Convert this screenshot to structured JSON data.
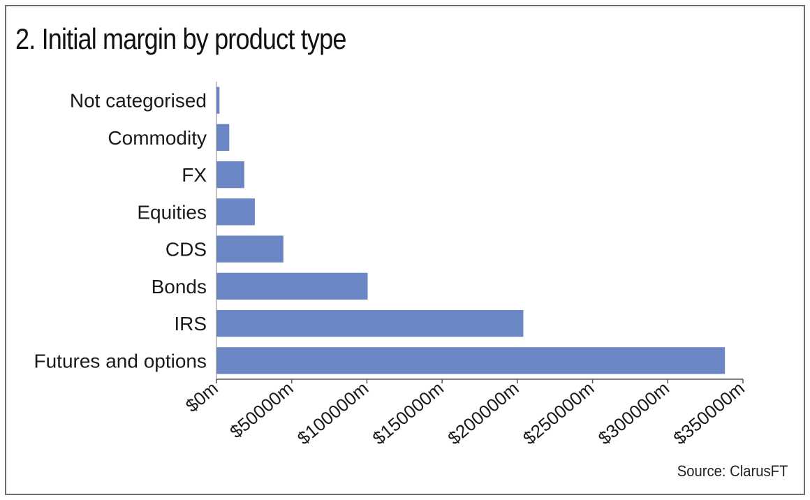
{
  "chart_data": {
    "type": "bar",
    "orientation": "horizontal",
    "title": "2. Initial margin by product type",
    "categories": [
      "Not categorised",
      "Commodity",
      "FX",
      "Equities",
      "CDS",
      "Bonds",
      "IRS",
      "Futures and options"
    ],
    "values": [
      2000,
      8500,
      18500,
      25500,
      44500,
      100500,
      204000,
      338000
    ],
    "unit": "$m",
    "xlim": [
      0,
      350000
    ],
    "xticks": [
      0,
      50000,
      100000,
      150000,
      200000,
      250000,
      300000,
      350000
    ],
    "xtick_labels": [
      "$0m",
      "$50000m",
      "$100000m",
      "$150000m",
      "$200000m",
      "$250000m",
      "$300000m",
      "$350000m"
    ],
    "xlabel": "",
    "ylabel": "",
    "grid": false,
    "legend": "none",
    "bar_color": "#6a86c4",
    "source": "Source: ClarusFT"
  }
}
